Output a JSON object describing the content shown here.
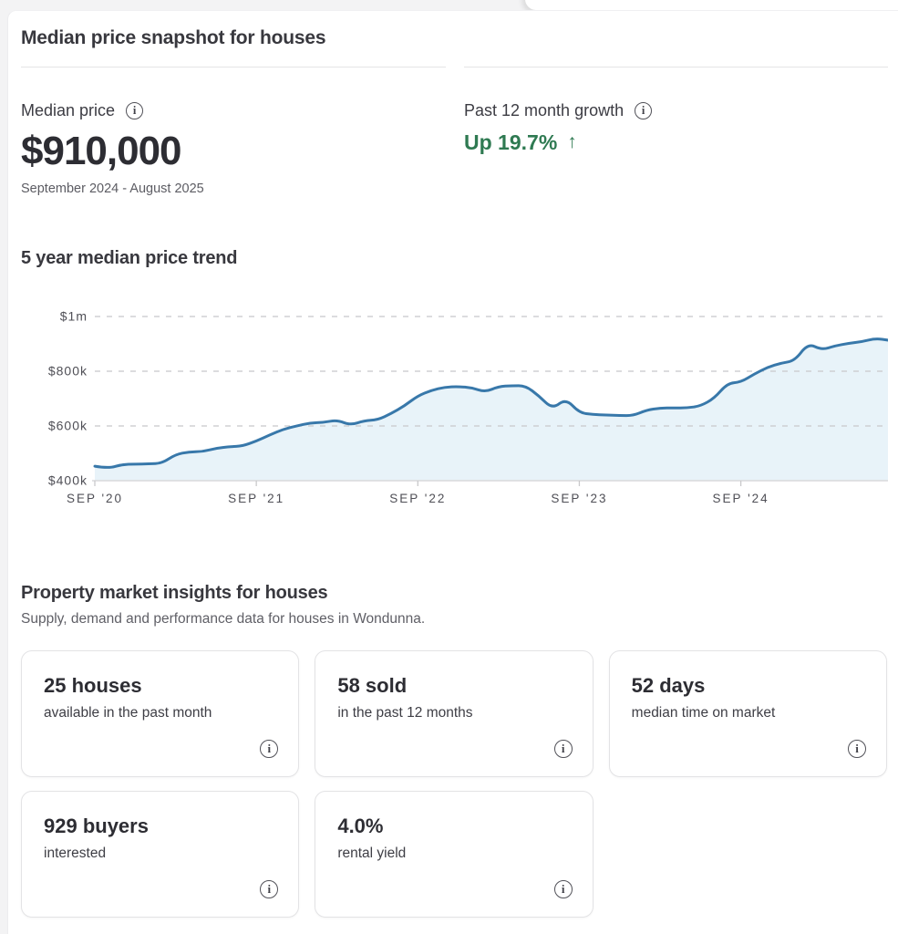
{
  "snapshot": {
    "title": "Median price snapshot for houses",
    "median_price": {
      "label": "Median price",
      "value": "$910,000",
      "period": "September 2024 - August 2025"
    },
    "growth": {
      "label": "Past 12 month growth",
      "value": "Up 19.7%",
      "arrow": "↑"
    }
  },
  "trend": {
    "title": "5 year median price trend"
  },
  "chart_data": {
    "type": "area",
    "title": "5 year median price trend",
    "frequency": "monthly",
    "x_start": "Sep 2020",
    "x_end": "Aug 2025",
    "values_unit": "AUD thousands",
    "values": [
      453,
      445,
      459,
      461,
      461,
      464,
      496,
      505,
      506,
      519,
      524,
      527,
      545,
      567,
      588,
      600,
      611,
      613,
      622,
      603,
      619,
      622,
      645,
      673,
      710,
      730,
      742,
      744,
      740,
      724,
      744,
      747,
      747,
      710,
      662,
      700,
      648,
      642,
      640,
      638,
      638,
      658,
      665,
      666,
      666,
      673,
      700,
      756,
      760,
      790,
      815,
      830,
      838,
      902,
      878,
      893,
      902,
      908,
      920,
      913
    ],
    "x_ticks": [
      {
        "label": "SEP '20",
        "month_index": 0
      },
      {
        "label": "SEP '21",
        "month_index": 12
      },
      {
        "label": "SEP '22",
        "month_index": 24
      },
      {
        "label": "SEP '23",
        "month_index": 36
      },
      {
        "label": "SEP '24",
        "month_index": 48
      }
    ],
    "y_ticks": [
      {
        "label": "$1m",
        "value": 1000
      },
      {
        "label": "$800k",
        "value": 800
      },
      {
        "label": "$600k",
        "value": 600
      },
      {
        "label": "$400k",
        "value": 400
      }
    ],
    "ylim": [
      400,
      1000
    ],
    "grid": "dashed-horizontal",
    "legend": "none"
  },
  "insights": {
    "title": "Property market insights for houses",
    "subtitle": "Supply, demand and performance data for houses in Wondunna.",
    "cards": [
      {
        "value": "25 houses",
        "label": "available in the past month"
      },
      {
        "value": "58 sold",
        "label": "in the past 12 months"
      },
      {
        "value": "52 days",
        "label": "median time on market"
      },
      {
        "value": "929 buyers",
        "label": "interested"
      },
      {
        "value": "4.0%",
        "label": "rental yield"
      }
    ]
  },
  "icons": {
    "info": "i"
  },
  "colors": {
    "growth_green": "#2F7A52",
    "trend_line": "#3878AA",
    "trend_fill": "#E8F3F9",
    "divider": "#E4E4E6",
    "text_dark": "#2D2D33",
    "text_secondary": "#5C5C63"
  }
}
